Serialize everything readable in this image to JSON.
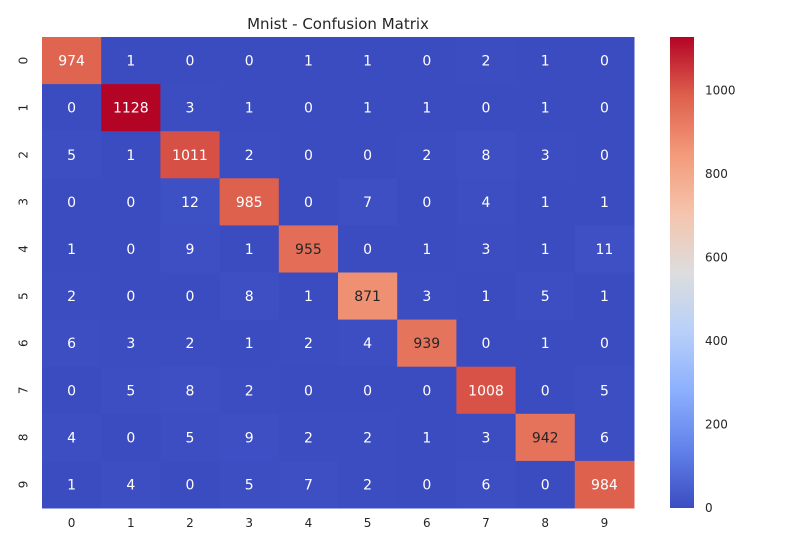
{
  "chart_data": {
    "type": "heatmap",
    "title": "Mnist - Confusion Matrix",
    "xlabel": "",
    "ylabel": "",
    "x_categories": [
      "0",
      "1",
      "2",
      "3",
      "4",
      "5",
      "6",
      "7",
      "8",
      "9"
    ],
    "y_categories": [
      "0",
      "1",
      "2",
      "3",
      "4",
      "5",
      "6",
      "7",
      "8",
      "9"
    ],
    "values": [
      [
        974,
        1,
        0,
        0,
        1,
        1,
        0,
        2,
        1,
        0
      ],
      [
        0,
        1128,
        3,
        1,
        0,
        1,
        1,
        0,
        1,
        0
      ],
      [
        5,
        1,
        1011,
        2,
        0,
        0,
        2,
        8,
        3,
        0
      ],
      [
        0,
        0,
        12,
        985,
        0,
        7,
        0,
        4,
        1,
        1
      ],
      [
        1,
        0,
        9,
        1,
        955,
        0,
        1,
        3,
        1,
        11
      ],
      [
        2,
        0,
        0,
        8,
        1,
        871,
        3,
        1,
        5,
        1
      ],
      [
        6,
        3,
        2,
        1,
        2,
        4,
        939,
        0,
        1,
        0
      ],
      [
        0,
        5,
        8,
        2,
        0,
        0,
        0,
        1008,
        0,
        5
      ],
      [
        4,
        0,
        5,
        9,
        2,
        2,
        1,
        3,
        942,
        6
      ],
      [
        1,
        4,
        0,
        5,
        7,
        2,
        0,
        6,
        0,
        984
      ]
    ],
    "colormap": "coolwarm",
    "value_range": [
      0,
      1128
    ],
    "colorbar_ticks": [
      0,
      200,
      400,
      600,
      800,
      1000
    ],
    "annotated": true,
    "grid": false
  }
}
